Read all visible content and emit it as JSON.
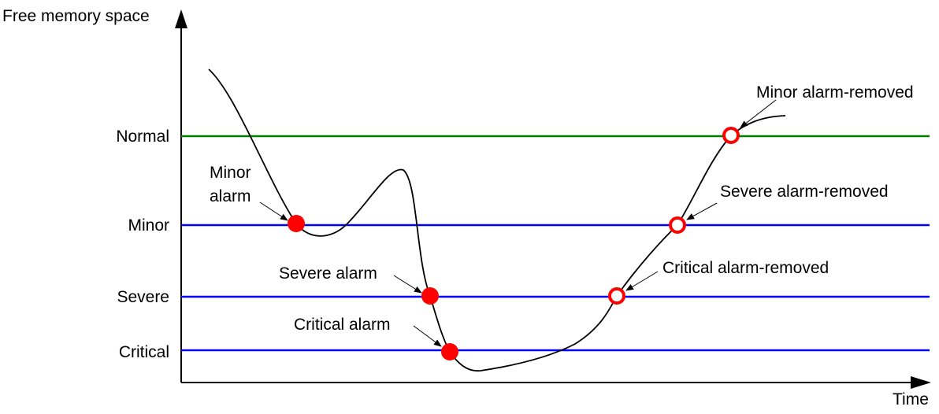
{
  "axes": {
    "y_label": "Free memory space",
    "x_label": "Time"
  },
  "thresholds": [
    {
      "id": "normal",
      "label": "Normal",
      "color": "#008000"
    },
    {
      "id": "minor",
      "label": "Minor",
      "color": "#0000ff"
    },
    {
      "id": "severe",
      "label": "Severe",
      "color": "#0000ff"
    },
    {
      "id": "critical",
      "label": "Critical",
      "color": "#0000ff"
    }
  ],
  "events": {
    "minor_alarm": {
      "line1": "Minor",
      "line2": "alarm"
    },
    "severe_alarm": {
      "label": "Severe alarm"
    },
    "critical_alarm": {
      "label": "Critical alarm"
    },
    "minor_removed": {
      "label": "Minor alarm-removed"
    },
    "severe_removed": {
      "label": "Severe alarm-removed"
    },
    "critical_removed": {
      "label": "Critical alarm-removed"
    }
  },
  "colors": {
    "alarm_marker": "#ff0000",
    "axis": "#000000",
    "curve": "#000000"
  }
}
